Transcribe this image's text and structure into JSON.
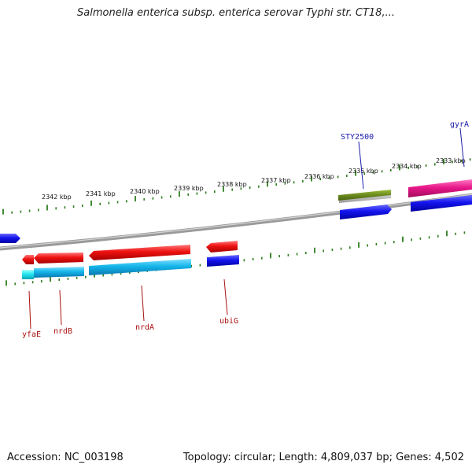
{
  "title": "Salmonella enterica subsp. enterica serovar Typhi str. CT18,...",
  "footer": {
    "accession": "Accession: NC_003198",
    "summary": "Topology: circular; Length: 4,809,037 bp; Genes: 4,502"
  },
  "colors": {
    "backbone": "#8a8a8a",
    "tick": "#2e7d1e",
    "forward_label": "#1a1aaa",
    "reverse_label": "#aa1111",
    "red_gene": "#e61010",
    "cyan_gene": "#12b4e8",
    "blue_gene": "#1010e6",
    "olive_gene": "#6b8a1e",
    "pink_gene": "#e8188a"
  },
  "scale": {
    "unit": "kbp",
    "labels": [
      "2342 kbp",
      "2341 kbp",
      "2340 kbp",
      "2339 kbp",
      "2338 kbp",
      "2337 kbp",
      "2336 kbp",
      "2335 kbp",
      "2334 kbp",
      "2333 kbp"
    ]
  },
  "gene_labels": {
    "forward": [
      "STY2500",
      "gyrA"
    ],
    "reverse": [
      "yfaE",
      "nrdB",
      "nrdA",
      "ubiG"
    ]
  }
}
